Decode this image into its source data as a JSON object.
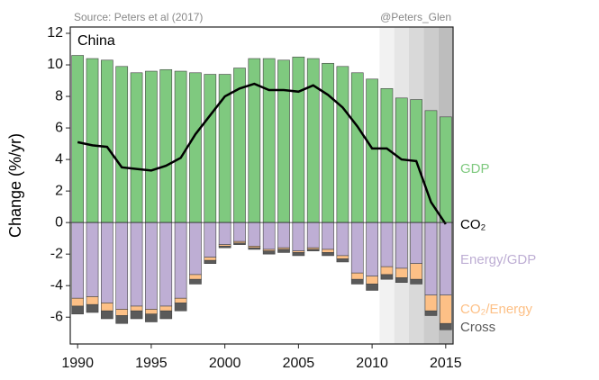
{
  "chart_data": {
    "type": "bar",
    "title": "China",
    "source": "Source: Peters et al (2017)",
    "credit": "@Peters_Glen",
    "y_label": "Change (%/yr)",
    "x": [
      1990,
      1991,
      1992,
      1993,
      1994,
      1995,
      1996,
      1997,
      1998,
      1999,
      2000,
      2001,
      2002,
      2003,
      2004,
      2005,
      2006,
      2007,
      2008,
      2009,
      2010,
      2011,
      2012,
      2013,
      2014,
      2015
    ],
    "series": [
      {
        "name": "GDP",
        "type": "bar",
        "color": "#7fc97f",
        "values": [
          10.6,
          10.4,
          10.3,
          9.9,
          9.5,
          9.6,
          9.7,
          9.6,
          9.5,
          9.4,
          9.4,
          9.8,
          10.4,
          10.4,
          10.3,
          10.5,
          10.4,
          10.1,
          9.9,
          9.5,
          9.1,
          8.5,
          7.9,
          7.8,
          7.1,
          6.7
        ]
      },
      {
        "name": "CO₂",
        "type": "line",
        "color": "#000000",
        "values": [
          5.1,
          4.9,
          4.8,
          3.5,
          3.4,
          3.3,
          3.6,
          4.1,
          5.6,
          6.8,
          8.0,
          8.5,
          8.8,
          8.4,
          8.4,
          8.3,
          8.7,
          8.1,
          7.3,
          6.1,
          4.7,
          4.7,
          4.0,
          3.9,
          1.3,
          -0.1
        ]
      },
      {
        "name": "Energy/GDP",
        "type": "bar",
        "color": "#beaed4",
        "values": [
          -4.8,
          -4.7,
          -5.1,
          -5.5,
          -5.3,
          -5.5,
          -5.3,
          -4.8,
          -3.3,
          -2.2,
          -1.4,
          -1.2,
          -1.5,
          -1.7,
          -1.6,
          -1.8,
          -1.6,
          -1.7,
          -2.1,
          -3.2,
          -3.4,
          -2.8,
          -2.9,
          -2.6,
          -4.6,
          -4.6
        ]
      },
      {
        "name": "CO₂/Energy",
        "type": "bar",
        "color": "#fdc086",
        "values": [
          -0.5,
          -0.5,
          -0.5,
          -0.4,
          -0.3,
          -0.3,
          -0.3,
          -0.3,
          -0.3,
          -0.2,
          -0.1,
          -0.1,
          -0.1,
          -0.1,
          -0.1,
          -0.1,
          -0.1,
          -0.2,
          -0.2,
          -0.4,
          -0.5,
          -0.5,
          -0.6,
          -1.0,
          -1.0,
          -1.8
        ]
      },
      {
        "name": "Cross",
        "type": "bar",
        "color": "#5a5a5a",
        "values": [
          -0.5,
          -0.5,
          -0.5,
          -0.5,
          -0.5,
          -0.5,
          -0.5,
          -0.5,
          -0.3,
          -0.2,
          -0.1,
          -0.1,
          -0.1,
          -0.2,
          -0.2,
          -0.2,
          -0.1,
          -0.2,
          -0.2,
          -0.3,
          -0.4,
          -0.3,
          -0.3,
          -0.3,
          -0.3,
          -0.4
        ]
      }
    ],
    "xlim": [
      1989.5,
      2015.5
    ],
    "xticks": [
      1990,
      1995,
      2000,
      2005,
      2010,
      2015
    ],
    "ylim": [
      -7.7,
      12.4
    ],
    "yticks": [
      -6,
      -4,
      -2,
      0,
      2,
      4,
      6,
      8,
      10,
      12
    ]
  }
}
